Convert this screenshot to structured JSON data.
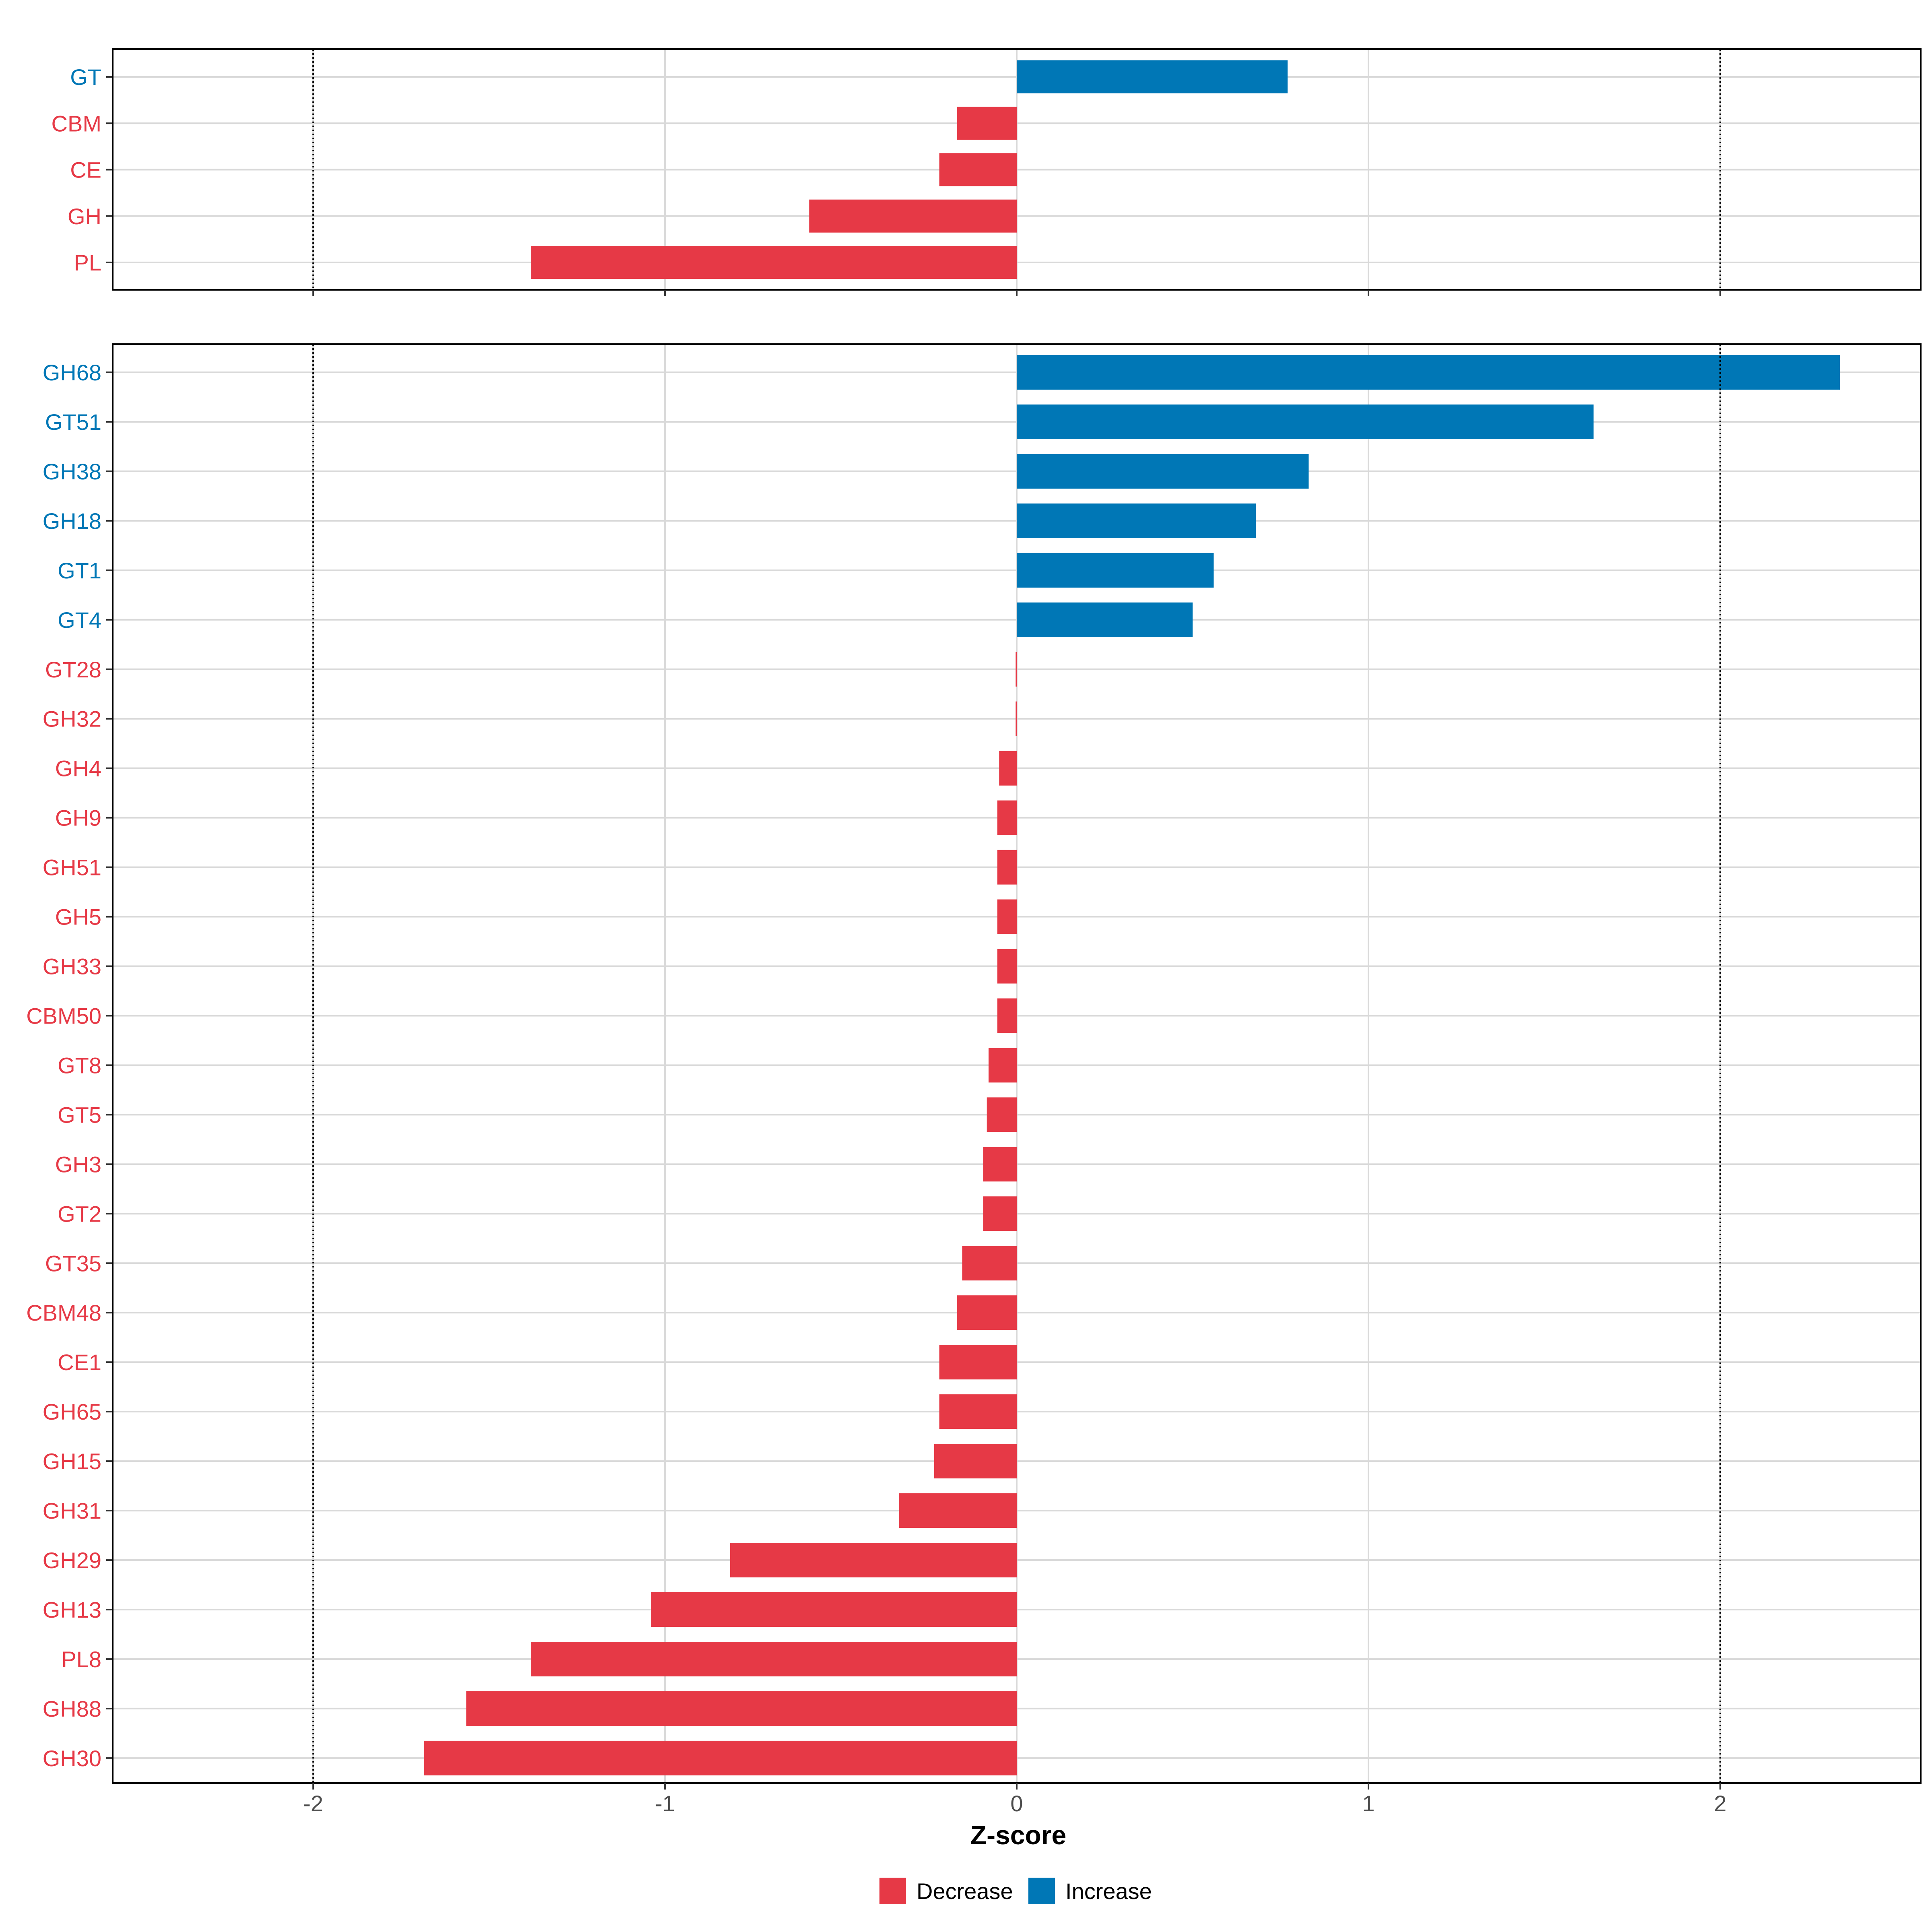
{
  "chart_data": {
    "type": "bar",
    "orientation": "horizontal",
    "xlabel": "Z-score",
    "xlim": [
      -2.57,
      2.57
    ],
    "x_ticks": [
      -2,
      -1,
      0,
      1,
      2
    ],
    "x_tick_labels": [
      "-2",
      "-1",
      "0",
      "1",
      "2"
    ],
    "reference_lines": [
      -2,
      2
    ],
    "colors": {
      "Decrease": "#E63946",
      "Increase": "#0077B6"
    },
    "legend": {
      "position": "bottom",
      "entries": [
        "Decrease",
        "Increase"
      ]
    },
    "panels": [
      {
        "name": "top",
        "categories": [
          "GT",
          "CBM",
          "CE",
          "GH",
          "PL"
        ],
        "values": [
          0.77,
          -0.17,
          -0.22,
          -0.59,
          -1.38
        ],
        "groups": [
          "Increase",
          "Decrease",
          "Decrease",
          "Decrease",
          "Decrease"
        ]
      },
      {
        "name": "bottom",
        "categories": [
          "GH68",
          "GT51",
          "GH38",
          "GH18",
          "GT1",
          "GT4",
          "GT28",
          "GH32",
          "GH4",
          "GH9",
          "GH51",
          "GH5",
          "GH33",
          "CBM50",
          "GT8",
          "GT5",
          "GH3",
          "GT2",
          "GT35",
          "CBM48",
          "CE1",
          "GH65",
          "GH15",
          "GH31",
          "GH29",
          "GH13",
          "PL8",
          "GH88",
          "GH30"
        ],
        "values": [
          2.34,
          1.64,
          0.83,
          0.68,
          0.56,
          0.5,
          -0.003,
          -0.003,
          -0.05,
          -0.055,
          -0.055,
          -0.055,
          -0.055,
          -0.055,
          -0.08,
          -0.085,
          -0.095,
          -0.095,
          -0.155,
          -0.17,
          -0.22,
          -0.22,
          -0.235,
          -0.335,
          -0.815,
          -1.04,
          -1.38,
          -1.565,
          -1.685
        ],
        "groups": [
          "Increase",
          "Increase",
          "Increase",
          "Increase",
          "Increase",
          "Increase",
          "Decrease",
          "Decrease",
          "Decrease",
          "Decrease",
          "Decrease",
          "Decrease",
          "Decrease",
          "Decrease",
          "Decrease",
          "Decrease",
          "Decrease",
          "Decrease",
          "Decrease",
          "Decrease",
          "Decrease",
          "Decrease",
          "Decrease",
          "Decrease",
          "Decrease",
          "Decrease",
          "Decrease",
          "Decrease",
          "Decrease"
        ]
      }
    ]
  }
}
